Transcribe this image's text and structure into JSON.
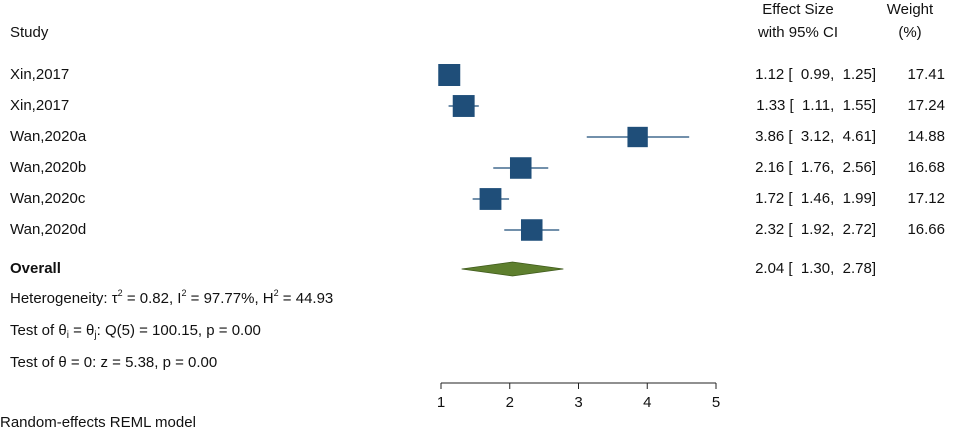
{
  "header": {
    "study_label": "Study",
    "effect_label_line1": "Effect Size",
    "effect_label_line2": "with 95% CI",
    "weight_label_line1": "Weight",
    "weight_label_line2": "(%)"
  },
  "chart_data": {
    "type": "forest",
    "xlim": [
      1,
      5
    ],
    "xticks": [
      1,
      2,
      3,
      4,
      5
    ],
    "null_line": null,
    "studies": [
      {
        "label": "Xin,2017",
        "estimate": 1.12,
        "ci": [
          0.99,
          1.25
        ],
        "ci_text": "1.12 [  0.99,  1.25]",
        "weight": 17.41,
        "weight_text": "17.41"
      },
      {
        "label": "Xin,2017",
        "estimate": 1.33,
        "ci": [
          1.11,
          1.55
        ],
        "ci_text": "1.33 [  1.11,  1.55]",
        "weight": 17.24,
        "weight_text": "17.24"
      },
      {
        "label": "Wan,2020a",
        "estimate": 3.86,
        "ci": [
          3.12,
          4.61
        ],
        "ci_text": "3.86 [  3.12,  4.61]",
        "weight": 14.88,
        "weight_text": "14.88"
      },
      {
        "label": "Wan,2020b",
        "estimate": 2.16,
        "ci": [
          1.76,
          2.56
        ],
        "ci_text": "2.16 [  1.76,  2.56]",
        "weight": 16.68,
        "weight_text": "16.68"
      },
      {
        "label": "Wan,2020c",
        "estimate": 1.72,
        "ci": [
          1.46,
          1.99
        ],
        "ci_text": "1.72 [  1.46,  1.99]",
        "weight": 17.12,
        "weight_text": "17.12"
      },
      {
        "label": "Wan,2020d",
        "estimate": 2.32,
        "ci": [
          1.92,
          2.72
        ],
        "ci_text": "2.32 [  1.92,  2.72]",
        "weight": 16.66,
        "weight_text": "16.66"
      }
    ],
    "overall": {
      "label": "Overall",
      "estimate": 2.04,
      "ci": [
        1.3,
        2.78
      ],
      "ci_text": "2.04 [  1.30,  2.78]"
    },
    "stats": {
      "het_prefix": "Heterogeneity: τ",
      "het_tau2": " = 0.82, I",
      "het_i2": " = 97.77%, H",
      "het_h2": " = 44.93",
      "sup_2": "2",
      "test1_a": "Test of θ",
      "test1_sub_i": "i",
      "test1_b": " = θ",
      "test1_sub_j": "j",
      "test1_c": ": Q(5) = 100.15, p = 0.00",
      "test2": "Test of θ = 0: z = 5.38, p = 0.00"
    },
    "model_note": "Random-effects REML model",
    "colors": {
      "marker": "#1f4e79",
      "diamond": "#5e7f2e",
      "diamond_stroke": "#3f5a1c",
      "ci_line": "#1f4e79",
      "axis": "#222222"
    }
  }
}
